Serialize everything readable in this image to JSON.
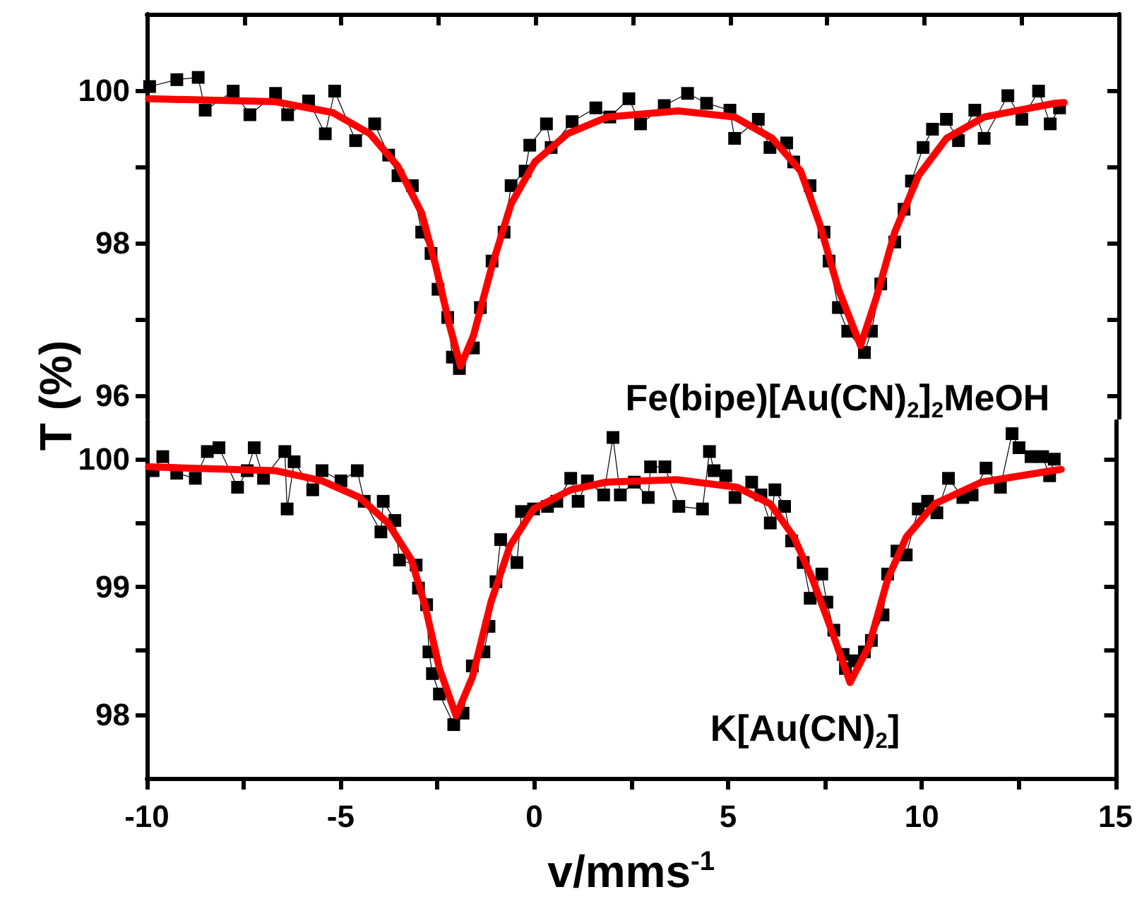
{
  "chart_data": [
    {
      "type": "line",
      "ylabel": "T (%)",
      "xlim": [
        -10,
        15
      ],
      "xticks": [
        -10,
        {
          "value": -7.5,
          "label": null
        },
        -5,
        {
          "value": -2.5,
          "label": null
        },
        0,
        {
          "value": 2.5,
          "label": null
        },
        5,
        {
          "value": 7.5,
          "label": null
        },
        10,
        {
          "value": 12.5,
          "label": null
        },
        15
      ],
      "ylim": [
        95.7,
        101
      ],
      "yticks": [
        96,
        {
          "value": 97,
          "label": null
        },
        98,
        {
          "value": 99,
          "label": null
        },
        100
      ],
      "tick_labels": "y",
      "annotations": [
        "Fe(bipe)[Au(CN)$_{2}$]$_{2}$MeOH"
      ],
      "series": [
        {
          "marker": "square",
          "color": "#000000",
          "x": [
            -9.93,
            -9.23,
            -8.68,
            -8.5,
            -7.78,
            -7.35,
            -6.69,
            -6.38,
            -5.84,
            -5.41,
            -5.17,
            -4.63,
            -4.14,
            -3.78,
            -3.54,
            -3.17,
            -2.93,
            -2.69,
            -2.51,
            -2.26,
            -2.14,
            -1.96,
            -1.6,
            -1.42,
            -1.12,
            -0.81,
            -0.63,
            -0.27,
            -0.15,
            0.28,
            0.4,
            0.94,
            1.55,
            1.91,
            2.4,
            2.7,
            3.31,
            3.91,
            4.4,
            5.0,
            5.12,
            5.73,
            6.03,
            6.46,
            6.64,
            7.06,
            7.42,
            7.55,
            7.79,
            8.03,
            8.46,
            8.64,
            8.88,
            9.24,
            9.48,
            9.67,
            9.97,
            10.21,
            10.57,
            10.88,
            11.3,
            11.54,
            12.15,
            12.51,
            12.94,
            13.24,
            13.48
          ],
          "values": [
            100.05,
            100.14,
            100.17,
            99.74,
            99.99,
            99.68,
            99.96,
            99.68,
            99.86,
            99.43,
            99.99,
            99.34,
            99.56,
            99.15,
            98.88,
            98.75,
            98.14,
            97.86,
            97.39,
            97.02,
            96.5,
            96.35,
            96.62,
            97.15,
            97.76,
            98.14,
            98.75,
            98.94,
            99.28,
            99.56,
            99.25,
            99.59,
            99.77,
            99.65,
            99.89,
            99.56,
            99.8,
            99.96,
            99.83,
            99.74,
            99.37,
            99.62,
            99.25,
            99.31,
            99.06,
            98.75,
            98.14,
            97.76,
            97.15,
            96.84,
            96.56,
            96.84,
            97.46,
            98.01,
            98.44,
            98.81,
            99.25,
            99.49,
            99.62,
            99.34,
            99.74,
            99.37,
            99.93,
            99.62,
            99.99,
            99.56,
            99.77
          ]
        },
        {
          "marker": "none",
          "color": "#ff0000",
          "x": [
            -9.96,
            -6.69,
            -5.23,
            -4.26,
            -3.54,
            -2.93,
            -2.57,
            -2.21,
            -1.93,
            -1.6,
            -1.12,
            -0.63,
            -0.02,
            0.82,
            1.85,
            3.67,
            5.12,
            6.09,
            6.82,
            7.3,
            7.79,
            8.36,
            8.76,
            9.24,
            9.85,
            10.57,
            11.54,
            13.36,
            13.6
          ],
          "values": [
            99.89,
            99.85,
            99.71,
            99.43,
            99.0,
            98.39,
            97.7,
            96.91,
            96.38,
            96.78,
            97.7,
            98.51,
            99.06,
            99.43,
            99.65,
            99.73,
            99.65,
            99.37,
            98.94,
            98.26,
            97.39,
            96.65,
            97.27,
            98.14,
            98.88,
            99.37,
            99.65,
            99.83,
            99.84
          ]
        }
      ]
    },
    {
      "type": "line",
      "xlabel": "v/mms$^{-1}$",
      "xlim": [
        -10,
        15
      ],
      "xticks": [
        -10,
        {
          "value": -7.5,
          "label": null
        },
        -5,
        {
          "value": -2.5,
          "label": null
        },
        0,
        {
          "value": 2.5,
          "label": null
        },
        5,
        {
          "value": 7.5,
          "label": null
        },
        10,
        {
          "value": 12.5,
          "label": null
        },
        15
      ],
      "ylim": [
        97.5,
        100.3
      ],
      "yticks": [
        98,
        {
          "value": 98.5,
          "label": null
        },
        99,
        {
          "value": 99.5,
          "label": null
        },
        100
      ],
      "annotations": [
        "K[Au(CN)$_{2}$]"
      ],
      "series": [
        {
          "marker": "square",
          "color": "#000000",
          "x": [
            -9.84,
            -9.59,
            -9.23,
            -8.75,
            -8.44,
            -8.14,
            -7.66,
            -7.41,
            -7.23,
            -6.99,
            -6.44,
            -6.38,
            -6.2,
            -5.72,
            -5.48,
            -4.99,
            -4.57,
            -4.39,
            -3.96,
            -3.9,
            -3.6,
            -3.48,
            -3.05,
            -2.99,
            -2.78,
            -2.72,
            -2.63,
            -2.45,
            -2.08,
            -1.84,
            -1.6,
            -1.3,
            -1.17,
            -0.99,
            -0.87,
            -0.45,
            -0.33,
            -0.02,
            0.34,
            0.58,
            0.94,
            1.13,
            1.37,
            1.79,
            2.03,
            2.22,
            2.58,
            2.94,
            3.0,
            3.37,
            3.73,
            4.34,
            4.52,
            4.64,
            4.94,
            5.18,
            5.61,
            5.85,
            6.09,
            6.21,
            6.46,
            6.64,
            6.94,
            7.12,
            7.42,
            7.55,
            7.73,
            7.97,
            8.03,
            8.27,
            8.52,
            8.7,
            9.0,
            9.12,
            9.36,
            9.6,
            9.91,
            10.15,
            10.39,
            10.69,
            11.06,
            11.3,
            11.66,
            12.03,
            12.33,
            12.51,
            12.82,
            13.12,
            13.3,
            13.42
          ],
          "values": [
            99.91,
            100.02,
            99.89,
            99.85,
            100.06,
            100.09,
            99.78,
            99.91,
            100.09,
            99.85,
            100.06,
            99.61,
            99.98,
            99.76,
            99.91,
            99.83,
            99.91,
            99.67,
            99.43,
            99.67,
            99.52,
            99.21,
            99.17,
            98.99,
            98.86,
            98.49,
            98.32,
            98.16,
            97.92,
            98.01,
            98.38,
            98.49,
            98.69,
            99.04,
            99.37,
            99.19,
            99.59,
            99.61,
            99.63,
            99.67,
            99.85,
            99.67,
            99.83,
            99.72,
            100.17,
            99.72,
            99.82,
            99.7,
            99.94,
            99.94,
            99.63,
            99.61,
            100.06,
            99.91,
            99.87,
            99.7,
            99.82,
            99.72,
            99.5,
            99.76,
            99.63,
            99.36,
            99.19,
            98.91,
            99.1,
            98.88,
            98.66,
            98.47,
            98.36,
            98.42,
            98.49,
            98.58,
            98.78,
            99.1,
            99.28,
            99.25,
            99.61,
            99.67,
            99.58,
            99.85,
            99.7,
            99.72,
            99.93,
            99.78,
            100.2,
            100.09,
            100.02,
            100.02,
            99.87,
            100.0
          ]
        },
        {
          "marker": "none",
          "color": "#ff0000",
          "x": [
            -9.96,
            -6.69,
            -5.48,
            -4.51,
            -3.78,
            -3.17,
            -2.81,
            -2.45,
            -2.02,
            -1.6,
            -1.12,
            -0.63,
            -0.02,
            0.94,
            1.85,
            3.67,
            5.24,
            6.09,
            6.7,
            7.18,
            7.67,
            8.15,
            8.64,
            9.12,
            9.6,
            10.33,
            11.54,
            13.36,
            13.6
          ],
          "values": [
            99.94,
            99.91,
            99.83,
            99.7,
            99.5,
            99.21,
            98.84,
            98.36,
            97.99,
            98.29,
            98.88,
            99.32,
            99.61,
            99.76,
            99.82,
            99.84,
            99.78,
            99.65,
            99.39,
            99.06,
            98.66,
            98.25,
            98.54,
            99.06,
            99.39,
            99.65,
            99.82,
            99.91,
            99.92
          ]
        }
      ]
    }
  ]
}
